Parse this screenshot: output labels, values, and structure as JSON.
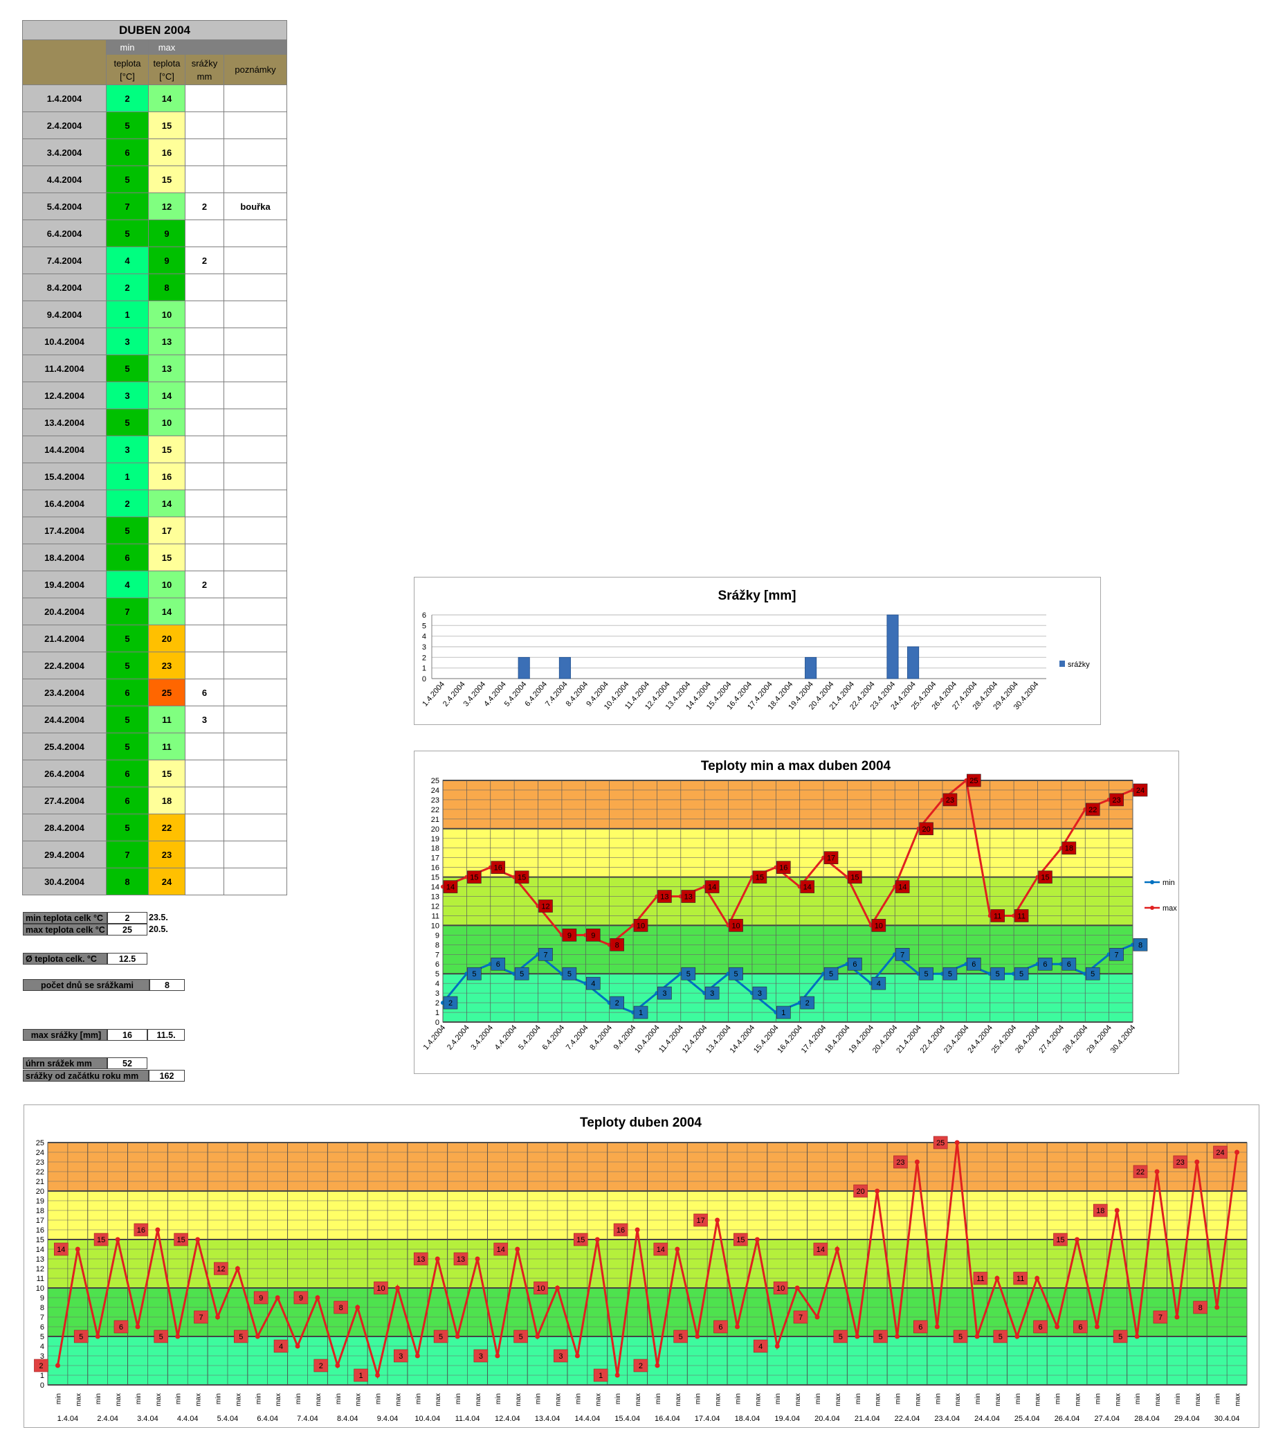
{
  "table": {
    "title": "DUBEN 2004",
    "header_min": "min",
    "header_max": "max",
    "header_teplota": "teplota",
    "header_unit": "[°C]",
    "header_srazky": "srážky",
    "header_mm": "mm",
    "header_poznamky": "poznámky",
    "rows": [
      {
        "date": "1.4.2004",
        "min": "2",
        "max": "14",
        "srazky": "",
        "poznamky": ""
      },
      {
        "date": "2.4.2004",
        "min": "5",
        "max": "15",
        "srazky": "",
        "poznamky": ""
      },
      {
        "date": "3.4.2004",
        "min": "6",
        "max": "16",
        "srazky": "",
        "poznamky": ""
      },
      {
        "date": "4.4.2004",
        "min": "5",
        "max": "15",
        "srazky": "",
        "poznamky": ""
      },
      {
        "date": "5.4.2004",
        "min": "7",
        "max": "12",
        "srazky": "2",
        "poznamky": "bouřka"
      },
      {
        "date": "6.4.2004",
        "min": "5",
        "max": "9",
        "srazky": "",
        "poznamky": ""
      },
      {
        "date": "7.4.2004",
        "min": "4",
        "max": "9",
        "srazky": "2",
        "poznamky": ""
      },
      {
        "date": "8.4.2004",
        "min": "2",
        "max": "8",
        "srazky": "",
        "poznamky": ""
      },
      {
        "date": "9.4.2004",
        "min": "1",
        "max": "10",
        "srazky": "",
        "poznamky": ""
      },
      {
        "date": "10.4.2004",
        "min": "3",
        "max": "13",
        "srazky": "",
        "poznamky": ""
      },
      {
        "date": "11.4.2004",
        "min": "5",
        "max": "13",
        "srazky": "",
        "poznamky": ""
      },
      {
        "date": "12.4.2004",
        "min": "3",
        "max": "14",
        "srazky": "",
        "poznamky": ""
      },
      {
        "date": "13.4.2004",
        "min": "5",
        "max": "10",
        "srazky": "",
        "poznamky": ""
      },
      {
        "date": "14.4.2004",
        "min": "3",
        "max": "15",
        "srazky": "",
        "poznamky": ""
      },
      {
        "date": "15.4.2004",
        "min": "1",
        "max": "16",
        "srazky": "",
        "poznamky": ""
      },
      {
        "date": "16.4.2004",
        "min": "2",
        "max": "14",
        "srazky": "",
        "poznamky": ""
      },
      {
        "date": "17.4.2004",
        "min": "5",
        "max": "17",
        "srazky": "",
        "poznamky": ""
      },
      {
        "date": "18.4.2004",
        "min": "6",
        "max": "15",
        "srazky": "",
        "poznamky": ""
      },
      {
        "date": "19.4.2004",
        "min": "4",
        "max": "10",
        "srazky": "2",
        "poznamky": ""
      },
      {
        "date": "20.4.2004",
        "min": "7",
        "max": "14",
        "srazky": "",
        "poznamky": ""
      },
      {
        "date": "21.4.2004",
        "min": "5",
        "max": "20",
        "srazky": "",
        "poznamky": ""
      },
      {
        "date": "22.4.2004",
        "min": "5",
        "max": "23",
        "srazky": "",
        "poznamky": ""
      },
      {
        "date": "23.4.2004",
        "min": "6",
        "max": "25",
        "srazky": "6",
        "poznamky": ""
      },
      {
        "date": "24.4.2004",
        "min": "5",
        "max": "11",
        "srazky": "3",
        "poznamky": ""
      },
      {
        "date": "25.4.2004",
        "min": "5",
        "max": "11",
        "srazky": "",
        "poznamky": ""
      },
      {
        "date": "26.4.2004",
        "min": "6",
        "max": "15",
        "srazky": "",
        "poznamky": ""
      },
      {
        "date": "27.4.2004",
        "min": "6",
        "max": "18",
        "srazky": "",
        "poznamky": ""
      },
      {
        "date": "28.4.2004",
        "min": "5",
        "max": "22",
        "srazky": "",
        "poznamky": ""
      },
      {
        "date": "29.4.2004",
        "min": "7",
        "max": "23",
        "srazky": "",
        "poznamky": ""
      },
      {
        "date": "30.4.2004",
        "min": "8",
        "max": "24",
        "srazky": "",
        "poznamky": ""
      }
    ]
  },
  "summary": {
    "min_label": "min teplota celk °C",
    "min_value": "2",
    "min_date": "23.5.",
    "max_label": "max teplota celk °C",
    "max_value": "25",
    "max_date": "20.5.",
    "avg_label": "Ø teplota celk. °C",
    "avg_value": "12.5",
    "rain_days_label": "počet dnů se srážkami",
    "rain_days_value": "8",
    "max_rain_label": "max srážky [mm]",
    "max_rain_value": "16",
    "max_rain_date": "11.5.",
    "total_rain_label": "úhrn srážek  mm",
    "total_rain_value": "52",
    "year_rain_label": "srážky od začátku roku mm",
    "year_rain_value": "162"
  },
  "colors": {
    "min_light": "#00ff80",
    "min_dark": "#00c000",
    "max_yellow": "#ffff99",
    "max_lightgreen": "#80ff80",
    "max_green": "#00c000",
    "max_orange": "#ffc000",
    "max_red": "#ff6600",
    "band_orange": "#f9a94b",
    "band_yellow": "#ffff66",
    "band_lightgreen": "#b5f03c",
    "band_green": "#4ee24e",
    "band_teal": "#3dfb9e",
    "series_min": "#0070c0",
    "series_max": "#e02020",
    "bar_blue": "#3b6fb6"
  },
  "chart_data": [
    {
      "type": "bar",
      "title": "Srážky [mm]",
      "categories": [
        "1.4.2004",
        "2.4.2004",
        "3.4.2004",
        "4.4.2004",
        "5.4.2004",
        "6.4.2004",
        "7.4.2004",
        "8.4.2004",
        "9.4.2004",
        "10.4.2004",
        "11.4.2004",
        "12.4.2004",
        "13.4.2004",
        "14.4.2004",
        "15.4.2004",
        "16.4.2004",
        "17.4.2004",
        "18.4.2004",
        "19.4.2004",
        "20.4.2004",
        "21.4.2004",
        "22.4.2004",
        "23.4.2004",
        "24.4.2004",
        "25.4.2004",
        "26.4.2004",
        "27.4.2004",
        "28.4.2004",
        "29.4.2004",
        "30.4.2004"
      ],
      "series": [
        {
          "name": "srážky",
          "values": [
            0,
            0,
            0,
            0,
            2,
            0,
            2,
            0,
            0,
            0,
            0,
            0,
            0,
            0,
            0,
            0,
            0,
            0,
            2,
            0,
            0,
            0,
            6,
            3,
            0,
            0,
            0,
            0,
            0,
            0
          ]
        }
      ],
      "ylim": [
        0,
        6
      ],
      "yticks": [
        "0",
        "1",
        "2",
        "3",
        "4",
        "5",
        "6"
      ],
      "legend": "right"
    },
    {
      "type": "line",
      "title": "Teploty min a max duben 2004",
      "categories": [
        "1.4.2004",
        "2.4.2004",
        "3.4.2004",
        "4.4.2004",
        "5.4.2004",
        "6.4.2004",
        "7.4.2004",
        "8.4.2004",
        "9.4.2004",
        "10.4.2004",
        "11.4.2004",
        "12.4.2004",
        "13.4.2004",
        "14.4.2004",
        "15.4.2004",
        "16.4.2004",
        "17.4.2004",
        "18.4.2004",
        "19.4.2004",
        "20.4.2004",
        "21.4.2004",
        "22.4.2004",
        "23.4.2004",
        "24.4.2004",
        "25.4.2004",
        "26.4.2004",
        "27.4.2004",
        "28.4.2004",
        "29.4.2004",
        "30.4.2004"
      ],
      "series": [
        {
          "name": "min",
          "values": [
            2,
            5,
            6,
            5,
            7,
            5,
            4,
            2,
            1,
            3,
            5,
            3,
            5,
            3,
            1,
            2,
            5,
            6,
            4,
            7,
            5,
            5,
            6,
            5,
            5,
            6,
            6,
            5,
            7,
            8
          ]
        },
        {
          "name": "max",
          "values": [
            14,
            15,
            16,
            15,
            12,
            9,
            9,
            8,
            10,
            13,
            13,
            14,
            10,
            15,
            16,
            14,
            17,
            15,
            10,
            14,
            20,
            23,
            25,
            11,
            11,
            15,
            18,
            22,
            23,
            24
          ]
        }
      ],
      "ylim": [
        0,
        25
      ],
      "legend": "right"
    },
    {
      "type": "line",
      "title": "Teploty duben 2004",
      "day_labels": [
        "1.4.04",
        "2.4.04",
        "3.4.04",
        "4.4.04",
        "5.4.04",
        "6.4.04",
        "7.4.04",
        "8.4.04",
        "9.4.04",
        "10.4.04",
        "11.4.04",
        "12.4.04",
        "13.4.04",
        "14.4.04",
        "15.4.04",
        "16.4.04",
        "17.4.04",
        "18.4.04",
        "19.4.04",
        "20.4.04",
        "21.4.04",
        "22.4.04",
        "23.4.04",
        "24.4.04",
        "25.4.04",
        "26.4.04",
        "27.4.04",
        "28.4.04",
        "29.4.04",
        "30.4.04"
      ],
      "sub_labels": [
        "min",
        "max"
      ],
      "values": [
        2,
        14,
        5,
        15,
        6,
        16,
        5,
        15,
        7,
        12,
        5,
        9,
        4,
        9,
        2,
        8,
        1,
        10,
        3,
        13,
        5,
        13,
        3,
        14,
        5,
        10,
        3,
        15,
        1,
        16,
        2,
        14,
        5,
        17,
        6,
        15,
        4,
        10,
        7,
        14,
        5,
        20,
        5,
        23,
        6,
        25,
        5,
        11,
        5,
        11,
        6,
        15,
        6,
        18,
        5,
        22,
        7,
        23,
        8,
        24
      ],
      "ylim": [
        0,
        25
      ]
    }
  ]
}
